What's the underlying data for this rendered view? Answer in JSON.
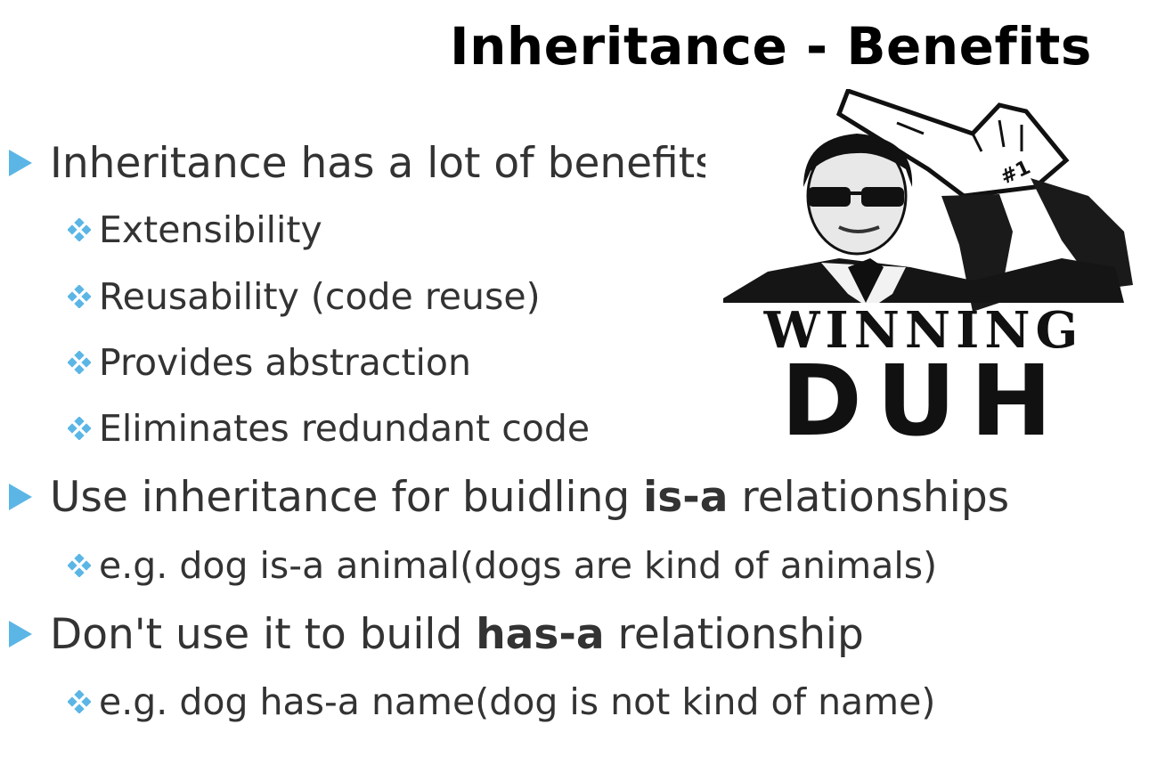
{
  "slide": {
    "title": "Inheritance - Benefits",
    "accent_color": "#5bb6e6",
    "bullets": [
      {
        "text": "Inheritance has a lot of benefits"
      },
      {
        "pre": "Use inheritance for buidling ",
        "bold": "is-a",
        "post": " relationships"
      },
      {
        "pre": "Don't use it to build ",
        "bold": "has-a",
        "post": " relationship"
      }
    ],
    "sub_items": [
      "Extensibility",
      "Reusability (code reuse)",
      "Provides abstraction",
      "Eliminates redundant code",
      "e.g. dog is-a animal(dogs are kind of animals)",
      "e.g. dog has-a name(dog is not kind of name)"
    ],
    "image": {
      "description_icon": "winning-duh-poster",
      "poster_text_line1": "WINNING",
      "poster_text_line2": "DUH",
      "foam_finger_text": "#1"
    }
  }
}
